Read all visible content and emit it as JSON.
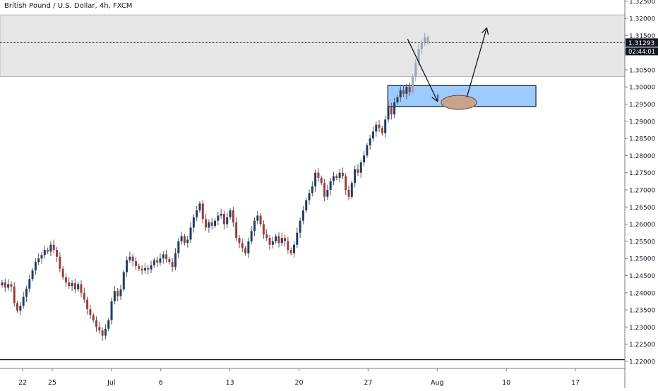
{
  "header": {
    "symbol_title": "British Pound / U.S. Dollar, 4h, FXCM"
  },
  "price_axis": {
    "ticks": [
      "1.32500",
      "1.32000",
      "1.31500",
      "1.30500",
      "1.30000",
      "1.29500",
      "1.29000",
      "1.28500",
      "1.28000",
      "1.27500",
      "1.27000",
      "1.26500",
      "1.26000",
      "1.25500",
      "1.25000",
      "1.24500",
      "1.24000",
      "1.23500",
      "1.23000",
      "1.22500",
      "1.22000"
    ],
    "last_price_label": "1.31293",
    "countdown_label": "02:44:01"
  },
  "time_axis": {
    "labels": [
      "22",
      "25",
      "Jul",
      "6",
      "13",
      "20",
      "27",
      "Aug",
      "10",
      "17"
    ]
  },
  "colors": {
    "up_body": "#1e3f66",
    "down_body": "#a33a3a",
    "wick": "#555555",
    "zone_fill": "#e6e6e6",
    "demand_fill": "#9ecbff",
    "demand_stroke": "#131722",
    "ellipse_fill": "#c9a48c",
    "price_badge": "#131722",
    "axis_line": "#787b86",
    "grid_text": "#131722"
  },
  "chart_data": {
    "type": "candlestick",
    "symbol": "British Pound / U.S. Dollar",
    "timeframe": "4h",
    "source": "FXCM",
    "ylim": [
      1.2185,
      1.33
    ],
    "y_axis_ticks": [
      1.325,
      1.32,
      1.315,
      1.305,
      1.3,
      1.295,
      1.29,
      1.285,
      1.28,
      1.275,
      1.27,
      1.265,
      1.26,
      1.255,
      1.25,
      1.245,
      1.24,
      1.235,
      1.23,
      1.225,
      1.22
    ],
    "date_range": [
      "2020-06-19",
      "2020-07-31"
    ],
    "x_axis_labels": [
      "22",
      "25",
      "Jul",
      "6",
      "13",
      "20",
      "27",
      "Aug",
      "10",
      "17"
    ],
    "last_price": 1.31293,
    "countdown": "02:44:01",
    "horizontal_line": 1.2205,
    "resistance_zone": {
      "from": 1.303,
      "to": 1.321
    },
    "demand_zone": {
      "from": 1.2943,
      "to": 1.3004,
      "start_date": "2020-07-29",
      "end_date": "2020-08-13"
    },
    "forecast_path": [
      {
        "date": "2020-07-31",
        "price": 1.314
      },
      {
        "date": "2020-08-03",
        "price": 1.296
      },
      {
        "date": "2020-08-06",
        "price": 1.297
      },
      {
        "date": "2020-08-08",
        "price": 1.317
      }
    ],
    "candle_closes": [
      1.243,
      1.2415,
      1.2425,
      1.2418,
      1.237,
      1.2348,
      1.2362,
      1.2388,
      1.2412,
      1.244,
      1.2465,
      1.249,
      1.25,
      1.251,
      1.2525,
      1.252,
      1.254,
      1.2525,
      1.2505,
      1.247,
      1.2445,
      1.243,
      1.242,
      1.2428,
      1.241,
      1.2425,
      1.24,
      1.238,
      1.2352,
      1.2335,
      1.232,
      1.23,
      1.229,
      1.2275,
      1.2295,
      1.232,
      1.2375,
      1.2405,
      1.239,
      1.241,
      1.246,
      1.2495,
      1.2505,
      1.2492,
      1.2478,
      1.247,
      1.2465,
      1.2472,
      1.2468,
      1.248,
      1.2495,
      1.2488,
      1.25,
      1.2512,
      1.2498,
      1.249,
      1.2475,
      1.2515,
      1.255,
      1.2565,
      1.2545,
      1.2555,
      1.259,
      1.262,
      1.264,
      1.266,
      1.2615,
      1.259,
      1.2605,
      1.2595,
      1.261,
      1.2625,
      1.263,
      1.26,
      1.262,
      1.264,
      1.2605,
      1.256,
      1.2545,
      1.253,
      1.2515,
      1.255,
      1.258,
      1.261,
      1.2625,
      1.26,
      1.257,
      1.256,
      1.254,
      1.255,
      1.2565,
      1.2545,
      1.256,
      1.255,
      1.2525,
      1.2515,
      1.254,
      1.2575,
      1.261,
      1.264,
      1.267,
      1.269,
      1.271,
      1.275,
      1.2735,
      1.272,
      1.268,
      1.27,
      1.2725,
      1.274,
      1.2735,
      1.275,
      1.274,
      1.27,
      1.268,
      1.272,
      1.276,
      1.275,
      1.278,
      1.28,
      1.283,
      1.285,
      1.287,
      1.289,
      1.288,
      1.2865,
      1.2905,
      1.2945,
      1.292,
      1.2955,
      1.297,
      1.299,
      1.298,
      1.3,
      1.2985,
      1.303,
      1.307,
      1.311,
      1.313,
      1.3145,
      1.3129
    ]
  }
}
